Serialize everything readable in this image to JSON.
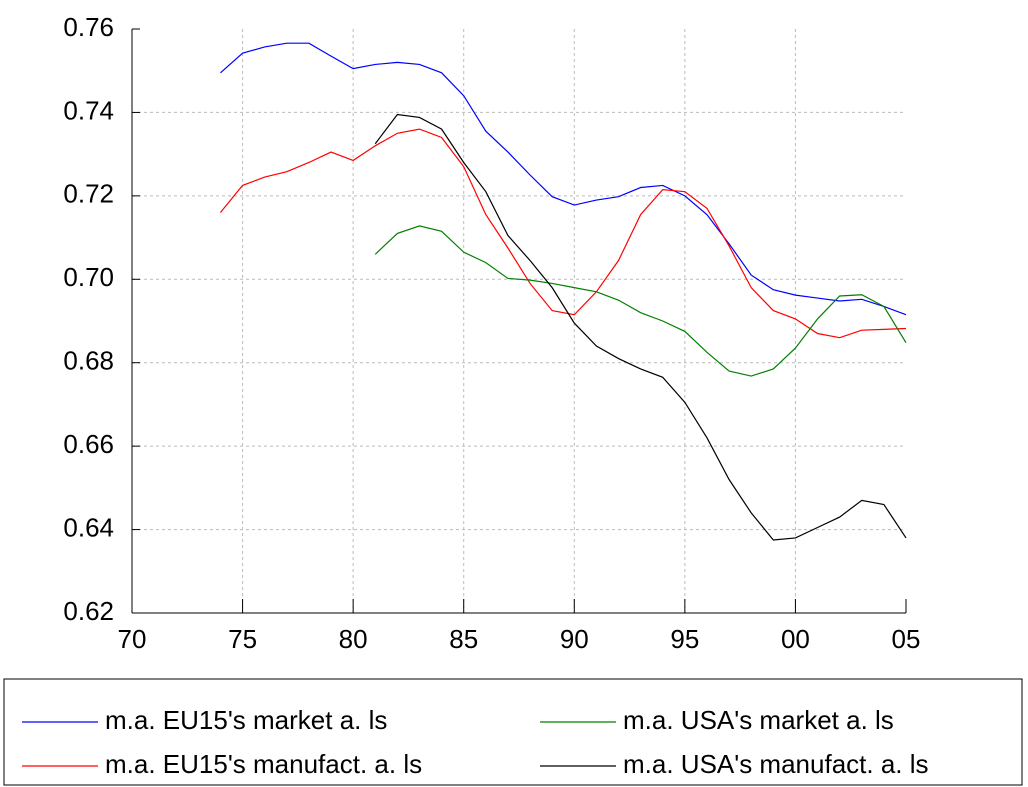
{
  "chart_data": {
    "type": "line",
    "x": [
      1974,
      1975,
      1976,
      1977,
      1978,
      1979,
      1980,
      1981,
      1982,
      1983,
      1984,
      1985,
      1986,
      1987,
      1988,
      1989,
      1990,
      1991,
      1992,
      1993,
      1994,
      1995,
      1996,
      1997,
      1998,
      1999,
      2000,
      2001,
      2002,
      2003,
      2004,
      2005
    ],
    "series": [
      {
        "name": "m.a. EU15's market a. ls",
        "color": "#0000ff",
        "values": [
          0.7495,
          0.7542,
          0.7557,
          0.7566,
          0.7566,
          0.7535,
          0.7505,
          0.7515,
          0.752,
          0.7515,
          0.7495,
          0.744,
          0.7355,
          0.7305,
          0.725,
          0.7198,
          0.7178,
          0.719,
          0.7198,
          0.722,
          0.7225,
          0.72,
          0.7155,
          0.7085,
          0.701,
          0.6975,
          0.6962,
          0.6955,
          0.6948,
          0.6952,
          0.6935,
          0.6915
        ]
      },
      {
        "name": "m.a. EU15's manufact. a. ls",
        "color": "#ff0000",
        "values": [
          0.716,
          0.7225,
          0.7245,
          0.7258,
          0.728,
          0.7305,
          0.7285,
          0.732,
          0.735,
          0.736,
          0.734,
          0.727,
          0.7155,
          0.7075,
          0.699,
          0.6925,
          0.6915,
          0.697,
          0.7045,
          0.7155,
          0.7215,
          0.721,
          0.717,
          0.708,
          0.698,
          0.6925,
          0.6905,
          0.687,
          0.686,
          0.6878,
          0.688,
          0.6882
        ]
      },
      {
        "name": "m.a. USA's market a. ls",
        "color": "#008000",
        "values": [
          null,
          null,
          null,
          null,
          null,
          null,
          null,
          0.706,
          0.711,
          0.7128,
          0.7115,
          0.7065,
          0.704,
          0.7002,
          0.6998,
          0.699,
          0.698,
          0.697,
          0.695,
          0.692,
          0.69,
          0.6875,
          0.6825,
          0.678,
          0.6768,
          0.6785,
          0.6835,
          0.6905,
          0.696,
          0.6963,
          0.6935,
          0.6848
        ]
      },
      {
        "name": "m.a. USA's manufact. a. ls",
        "color": "#000000",
        "values": [
          null,
          null,
          null,
          null,
          null,
          null,
          null,
          0.7325,
          0.7395,
          0.7388,
          0.736,
          0.728,
          0.721,
          0.7105,
          0.7045,
          0.698,
          0.6895,
          0.684,
          0.681,
          0.6785,
          0.6765,
          0.6705,
          0.662,
          0.652,
          0.644,
          0.6375,
          0.638,
          0.6405,
          0.643,
          0.647,
          0.646,
          0.638
        ]
      }
    ],
    "xlim": [
      1970,
      2005
    ],
    "xticks": [
      {
        "value": 1970,
        "label": "70"
      },
      {
        "value": 1975,
        "label": "75"
      },
      {
        "value": 1980,
        "label": "80"
      },
      {
        "value": 1985,
        "label": "85"
      },
      {
        "value": 1990,
        "label": "90"
      },
      {
        "value": 1995,
        "label": "95"
      },
      {
        "value": 2000,
        "label": "00"
      },
      {
        "value": 2005,
        "label": "05"
      }
    ],
    "ylim": [
      0.62,
      0.76
    ],
    "yticks": [
      0.62,
      0.64,
      0.66,
      0.68,
      {
        "value": 0.7,
        "label": "0.70"
      },
      0.72,
      0.74,
      0.76
    ],
    "grid": true
  }
}
